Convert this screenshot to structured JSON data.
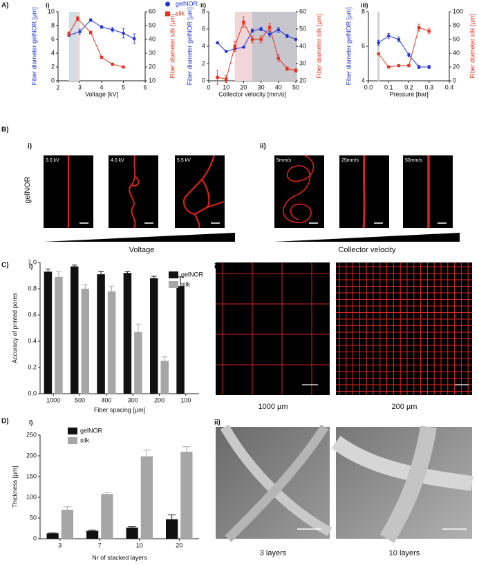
{
  "labels": {
    "A": "A)",
    "B": "B)",
    "C": "C)",
    "D": "D)"
  },
  "B": {
    "i": "i)",
    "ii": "ii)",
    "row_label": "gelNOR",
    "voltage_images": [
      "3.0 kV",
      "4.0 kV",
      "5.5 kV"
    ],
    "velocity_images": [
      "5mm/s",
      "25mm/s",
      "50mm/s"
    ],
    "voltage_axis": "Voltage",
    "velocity_axis": "Collector velocity"
  },
  "C_images": {
    "panel": "ii)",
    "captions": [
      "1000 µm",
      "200 µm"
    ]
  },
  "D_images": {
    "panel": "ii)",
    "captions": [
      "3 layers",
      "10 layers"
    ]
  },
  "chart_data": [
    {
      "type": "line",
      "panel": "i)",
      "x_label": "Voltage [kV]",
      "y_label": "Fiber diameter gelNOR [µm]",
      "y2_label": "Fiber diameter silk [µm]",
      "xlim": [
        2,
        6
      ],
      "xticks": [
        2,
        3,
        4,
        5,
        6
      ],
      "ylim": [
        0,
        10
      ],
      "yticks": [
        0,
        2,
        4,
        6,
        8,
        10
      ],
      "y2lim": [
        10,
        60
      ],
      "y2ticks": [
        10,
        20,
        30,
        40,
        50,
        60
      ],
      "highlights": [
        {
          "range": [
            2.5,
            2.9
          ],
          "color": "#d3dde6"
        },
        {
          "range": [
            2.9,
            3.0
          ],
          "color": "#f2d3cf"
        }
      ],
      "legend": "top-right",
      "series": [
        {
          "name": "gelNOR",
          "color": "#2233dd",
          "marker": "circle",
          "axis": "y",
          "x": [
            2.5,
            3,
            3.5,
            4,
            4.5,
            5,
            5.5
          ],
          "values": [
            6.6,
            7.1,
            8.8,
            7.8,
            7.4,
            6.9,
            6.1
          ],
          "errors": [
            0.2,
            0.4,
            0.2,
            0.2,
            0.3,
            0.7,
            0.7
          ]
        },
        {
          "name": "silk",
          "color": "#e8321e",
          "marker": "square",
          "axis": "y2",
          "x": [
            2.5,
            2.9,
            3.5,
            4,
            4.5,
            5
          ],
          "values": [
            44,
            55,
            45,
            27,
            22,
            20
          ],
          "errors": [
            1.5,
            1.5,
            1,
            0.8,
            0.6,
            0.4
          ]
        }
      ]
    },
    {
      "type": "line",
      "panel": "ii)",
      "x_label": "Collector velocity [mm/s]",
      "y_label": "Fiber diameter gelNOR [µm]",
      "y2_label": "Fiber diameter silk [µm]",
      "xlim": [
        0,
        50
      ],
      "xticks": [
        0,
        10,
        20,
        30,
        40,
        50
      ],
      "ylim": [
        0,
        8
      ],
      "yticks": [
        0,
        2,
        4,
        6,
        8
      ],
      "y2lim": [
        20,
        60
      ],
      "y2ticks": [
        20,
        30,
        40,
        50,
        60
      ],
      "highlights": [
        {
          "range": [
            15,
            25
          ],
          "color": "#f0d6d6"
        },
        {
          "range": [
            25,
            50
          ],
          "color": "#c6c6cc"
        }
      ],
      "series": [
        {
          "name": "gelNOR",
          "color": "#2233dd",
          "marker": "circle",
          "axis": "y",
          "x": [
            5,
            10,
            15,
            20,
            25,
            30,
            35,
            40,
            45,
            50
          ],
          "values": [
            4.4,
            3.4,
            3.7,
            3.9,
            5.8,
            6.0,
            5.4,
            5.9,
            5.2,
            4.8
          ],
          "errors": [
            0.1,
            0.1,
            0.1,
            0.1,
            0.2,
            0.2,
            0.3,
            0.3,
            0.2,
            0.1
          ]
        },
        {
          "name": "silk",
          "color": "#e8321e",
          "marker": "square",
          "axis": "y2",
          "x": [
            5,
            10,
            15,
            20,
            25,
            30,
            35,
            40,
            45,
            50
          ],
          "values": [
            22,
            21,
            40,
            54,
            44,
            44,
            51,
            33,
            27,
            26
          ],
          "errors": [
            4,
            2,
            3,
            3,
            2,
            2,
            2,
            2,
            1,
            1
          ]
        }
      ]
    },
    {
      "type": "line",
      "panel": "iii)",
      "x_label": "Pressure [bar]",
      "y_label": "Fiber diameter gelNOR [µm]",
      "y2_label": "Fiber diameter silk [µm]",
      "xlim": [
        0,
        0.4
      ],
      "xticks": [
        {
          "value": 0,
          "label": "0.0"
        },
        0.1,
        0.2,
        0.3,
        0.4
      ],
      "ylim": [
        4,
        8
      ],
      "yticks": [
        4,
        6,
        8
      ],
      "y2lim": [
        0,
        100
      ],
      "y2ticks": [
        0,
        20,
        40,
        60,
        80,
        100
      ],
      "highlights": [
        {
          "range": [
            0.045,
            0.055
          ],
          "color": "#d0d0d0"
        }
      ],
      "series": [
        {
          "name": "gelNOR",
          "color": "#2233dd",
          "marker": "circle",
          "axis": "y",
          "x": [
            0.05,
            0.1,
            0.15,
            0.2,
            0.25,
            0.3
          ],
          "values": [
            6.2,
            6.6,
            6.4,
            5.5,
            4.8,
            4.8
          ],
          "errors": [
            0.15,
            0.15,
            0.15,
            0.1,
            0.1,
            0.1
          ]
        },
        {
          "name": "silk",
          "color": "#e8321e",
          "marker": "square",
          "axis": "y2",
          "x": [
            0.05,
            0.1,
            0.15,
            0.2,
            0.25,
            0.3
          ],
          "values": [
            39,
            20,
            22,
            22,
            77,
            72
          ],
          "errors": [
            1,
            1,
            0.5,
            0.5,
            5,
            4
          ]
        }
      ]
    },
    {
      "type": "bar",
      "panel": "i)",
      "x_label": "Fiber spacing [µm]",
      "y_label": "Accuracy of printed pores",
      "categories": [
        "1000",
        "500",
        "400",
        "300",
        "200",
        "100"
      ],
      "ylim": [
        0,
        1
      ],
      "yticks": [
        {
          "value": 0,
          "label": "0.0"
        },
        0.2,
        0.4,
        0.6,
        0.8,
        {
          "value": 1,
          "label": "1.0"
        }
      ],
      "legend": "top-right",
      "series": [
        {
          "name": "gelNOR",
          "color": "#111111",
          "values": [
            0.93,
            0.97,
            0.91,
            0.92,
            0.88,
            0.82
          ],
          "errors": [
            0.02,
            0.01,
            0.02,
            0.01,
            0.015,
            0.07
          ]
        },
        {
          "name": "silk",
          "color": "#a6a6a6",
          "values": [
            0.89,
            0.8,
            0.78,
            0.47,
            0.25,
            null
          ],
          "errors": [
            0.04,
            0.03,
            0.04,
            0.06,
            0.03,
            null
          ]
        }
      ]
    },
    {
      "type": "bar",
      "panel": "i)",
      "x_label": "Nr of stacked layers",
      "y_label": "Thickness [µm]",
      "categories": [
        "3",
        "7",
        "10",
        "20"
      ],
      "ylim": [
        0,
        250
      ],
      "yticks": [
        0,
        50,
        100,
        150,
        200,
        250
      ],
      "legend": "top-left",
      "series": [
        {
          "name": "gelNOR",
          "color": "#111111",
          "values": [
            13,
            19,
            27,
            47
          ],
          "errors": [
            1,
            2,
            2,
            11
          ]
        },
        {
          "name": "silk",
          "color": "#a6a6a6",
          "values": [
            70,
            108,
            199,
            210
          ],
          "errors": [
            7,
            3,
            15,
            12
          ]
        }
      ]
    }
  ]
}
